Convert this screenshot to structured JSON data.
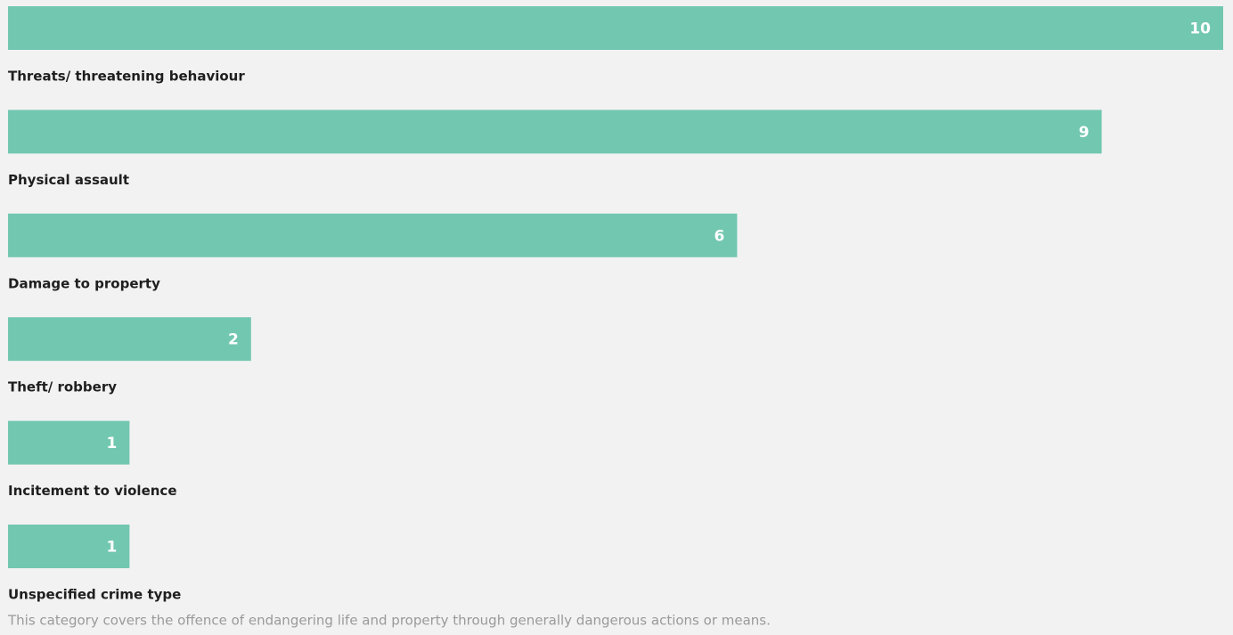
{
  "chart_data": {
    "type": "bar",
    "orientation": "horizontal",
    "categories": [
      "Threats/ threatening behaviour",
      "Physical assault",
      "Damage to property",
      "Theft/ robbery",
      "Incitement to violence",
      "Unspecified crime type"
    ],
    "values": [
      10,
      9,
      6,
      2,
      1,
      1
    ],
    "color": "#72c7b0",
    "note": "This category covers the offence of endangering life and property through generally dangerous actions or means."
  }
}
